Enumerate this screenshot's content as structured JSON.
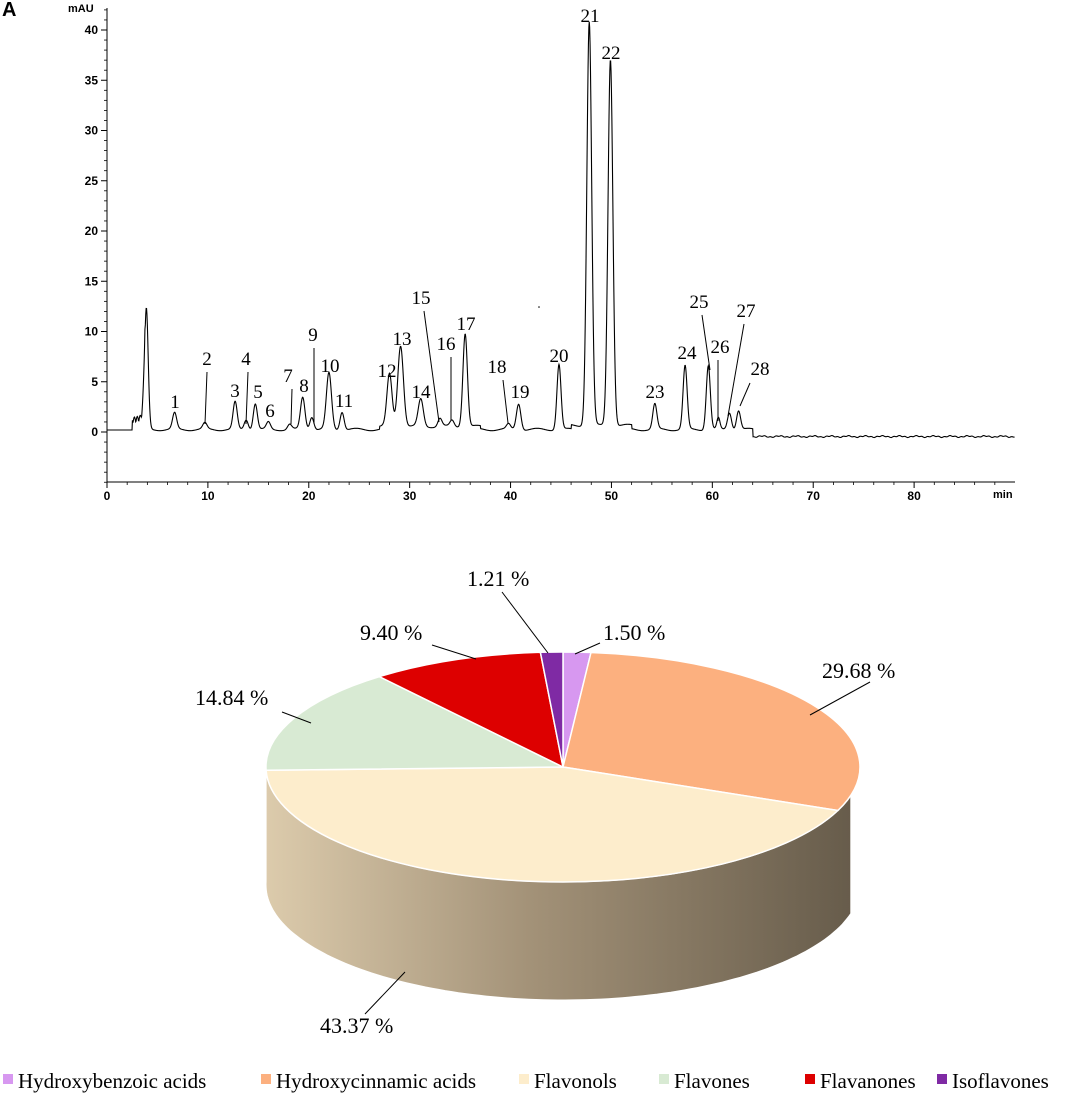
{
  "panel_label": "A",
  "chart_data": [
    {
      "type": "line",
      "xlabel": "min",
      "ylabel": "mAU",
      "xlim": [
        0,
        90
      ],
      "ylim": [
        -5,
        42
      ],
      "x_ticks": [
        0,
        10,
        20,
        30,
        40,
        50,
        60,
        70,
        80
      ],
      "y_ticks": [
        0,
        5,
        10,
        15,
        20,
        25,
        30,
        35,
        40
      ],
      "peaks": [
        {
          "label": "",
          "x": 3.9,
          "y": 12.0,
          "w": 0.18
        },
        {
          "label": "1",
          "x": 6.7,
          "y": 1.6,
          "w": 0.2
        },
        {
          "label": "2",
          "x": 9.7,
          "y": 0.6,
          "w": 0.2
        },
        {
          "label": "3",
          "x": 12.7,
          "y": 2.7,
          "w": 0.2
        },
        {
          "label": "4",
          "x": 13.8,
          "y": 1.0,
          "w": 0.2
        },
        {
          "label": "5",
          "x": 14.7,
          "y": 2.6,
          "w": 0.2
        },
        {
          "label": "6",
          "x": 16.0,
          "y": 0.7,
          "w": 0.2
        },
        {
          "label": "7",
          "x": 18.1,
          "y": 0.5,
          "w": 0.2
        },
        {
          "label": "8",
          "x": 19.4,
          "y": 3.2,
          "w": 0.22
        },
        {
          "label": "9",
          "x": 20.3,
          "y": 1.3,
          "w": 0.2
        },
        {
          "label": "10",
          "x": 22.0,
          "y": 5.6,
          "w": 0.25
        },
        {
          "label": "11",
          "x": 23.3,
          "y": 1.8,
          "w": 0.2
        },
        {
          "label": "12",
          "x": 28.0,
          "y": 5.2,
          "w": 0.25
        },
        {
          "label": "13",
          "x": 29.1,
          "y": 8.1,
          "w": 0.28
        },
        {
          "label": "14",
          "x": 31.1,
          "y": 2.7,
          "w": 0.25
        },
        {
          "label": "15",
          "x": 33.0,
          "y": 0.8,
          "w": 0.2
        },
        {
          "label": "16",
          "x": 34.2,
          "y": 0.6,
          "w": 0.2
        },
        {
          "label": "17",
          "x": 35.5,
          "y": 9.3,
          "w": 0.22
        },
        {
          "label": "18",
          "x": 39.8,
          "y": 0.5,
          "w": 0.2
        },
        {
          "label": "19",
          "x": 40.8,
          "y": 2.6,
          "w": 0.22
        },
        {
          "label": "20",
          "x": 44.8,
          "y": 6.5,
          "w": 0.2
        },
        {
          "label": "21",
          "x": 47.8,
          "y": 40.2,
          "w": 0.24
        },
        {
          "label": "22",
          "x": 49.9,
          "y": 36.5,
          "w": 0.24
        },
        {
          "label": "23",
          "x": 54.3,
          "y": 2.5,
          "w": 0.2
        },
        {
          "label": "24",
          "x": 57.3,
          "y": 6.3,
          "w": 0.2
        },
        {
          "label": "25",
          "x": 59.6,
          "y": 6.4,
          "w": 0.2
        },
        {
          "label": "26",
          "x": 60.6,
          "y": 1.1,
          "w": 0.15
        },
        {
          "label": "27",
          "x": 61.7,
          "y": 1.7,
          "w": 0.2
        },
        {
          "label": "28",
          "x": 62.6,
          "y": 1.9,
          "w": 0.2
        }
      ]
    },
    {
      "type": "pie",
      "slices": [
        {
          "name": "Hydroxybenzoic acids",
          "value": 1.5,
          "label": "1.50 %",
          "color": "#d798f0"
        },
        {
          "name": "Hydroxycinnamic acids",
          "value": 29.68,
          "label": "29.68 %",
          "color": "#fcb07f"
        },
        {
          "name": "Flavonols",
          "value": 43.37,
          "label": "43.37 %",
          "color": "#fdedcc"
        },
        {
          "name": "Flavones",
          "value": 14.84,
          "label": "14.84 %",
          "color": "#d8ead3"
        },
        {
          "name": "Flavanones",
          "value": 9.4,
          "label": "9.40 %",
          "color": "#dd0000"
        },
        {
          "name": "Isoflavones",
          "value": 1.21,
          "label": "1.21 %",
          "color": "#7f2aa4"
        }
      ],
      "legend_position": "bottom"
    }
  ]
}
